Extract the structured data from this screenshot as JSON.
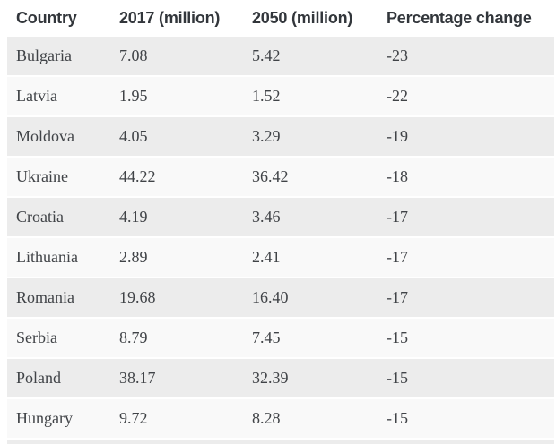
{
  "table": {
    "columns": [
      "Country",
      "2017 (million)",
      "2050 (million)",
      "Percentage change"
    ],
    "rows": [
      {
        "country": "Bulgaria",
        "y2017": "7.08",
        "y2050": "5.42",
        "change": "-23"
      },
      {
        "country": "Latvia",
        "y2017": "1.95",
        "y2050": "1.52",
        "change": "-22"
      },
      {
        "country": "Moldova",
        "y2017": "4.05",
        "y2050": "3.29",
        "change": "-19"
      },
      {
        "country": "Ukraine",
        "y2017": "44.22",
        "y2050": "36.42",
        "change": "-18"
      },
      {
        "country": "Croatia",
        "y2017": "4.19",
        "y2050": "3.46",
        "change": "-17"
      },
      {
        "country": "Lithuania",
        "y2017": "2.89",
        "y2050": "2.41",
        "change": "-17"
      },
      {
        "country": "Romania",
        "y2017": "19.68",
        "y2050": "16.40",
        "change": "-17"
      },
      {
        "country": "Serbia",
        "y2017": "8.79",
        "y2050": "7.45",
        "change": "-15"
      },
      {
        "country": "Poland",
        "y2017": "38.17",
        "y2050": "32.39",
        "change": "-15"
      },
      {
        "country": "Hungary",
        "y2017": "9.72",
        "y2050": "8.28",
        "change": "-15"
      }
    ]
  },
  "chart_data": {
    "type": "table",
    "title": "",
    "columns": [
      "Country",
      "2017 (million)",
      "2050 (million)",
      "Percentage change"
    ],
    "rows": [
      [
        "Bulgaria",
        7.08,
        5.42,
        -23
      ],
      [
        "Latvia",
        1.95,
        1.52,
        -22
      ],
      [
        "Moldova",
        4.05,
        3.29,
        -19
      ],
      [
        "Ukraine",
        44.22,
        36.42,
        -18
      ],
      [
        "Croatia",
        4.19,
        3.46,
        -17
      ],
      [
        "Lithuania",
        2.89,
        2.41,
        -17
      ],
      [
        "Romania",
        19.68,
        16.4,
        -17
      ],
      [
        "Serbia",
        8.79,
        7.45,
        -15
      ],
      [
        "Poland",
        38.17,
        32.39,
        -15
      ],
      [
        "Hungary",
        9.72,
        8.28,
        -15
      ]
    ]
  },
  "colors": {
    "row_shaded": "#ececec",
    "row_light": "#f9f9f9",
    "header_text": "#32363b",
    "body_text": "#404347",
    "background": "#ffffff"
  }
}
